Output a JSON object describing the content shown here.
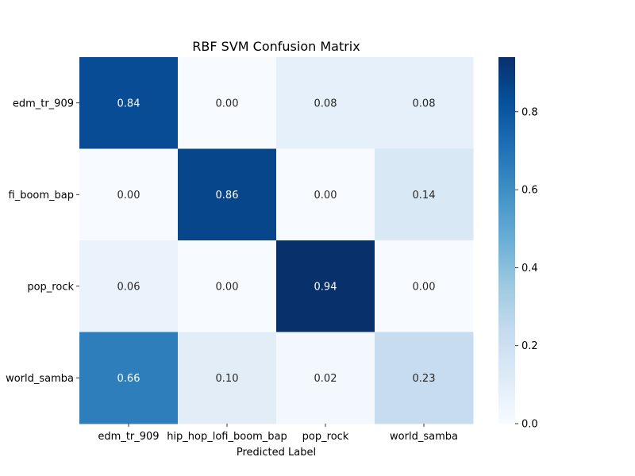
{
  "chart_data": {
    "type": "heatmap",
    "title": "RBF SVM Confusion Matrix",
    "xlabel": "Predicted Label",
    "ylabel": "",
    "x_categories": [
      "edm_tr_909",
      "hip_hop_lofi_boom_bap",
      "pop_rock",
      "world_samba"
    ],
    "y_categories": [
      "edm_tr_909",
      "hip_hop_lofi_boom_bap",
      "pop_rock",
      "world_samba"
    ],
    "y_tick_labels_visible": [
      "edm_tr_909",
      "fi_boom_bap",
      "pop_rock",
      "world_samba"
    ],
    "values": [
      [
        0.84,
        0.0,
        0.08,
        0.08
      ],
      [
        0.0,
        0.86,
        0.0,
        0.14
      ],
      [
        0.06,
        0.0,
        0.94,
        0.0
      ],
      [
        0.66,
        0.1,
        0.02,
        0.23
      ]
    ],
    "value_format_decimals": 2,
    "colormap": "Blues",
    "color_range": [
      0.0,
      0.94
    ],
    "colorbar": {
      "ticks": [
        0.0,
        0.2,
        0.4,
        0.6,
        0.8
      ],
      "tick_labels": [
        "0.0",
        "0.2",
        "0.4",
        "0.6",
        "0.8"
      ]
    },
    "grid": false,
    "legend": "colorbar-right"
  }
}
